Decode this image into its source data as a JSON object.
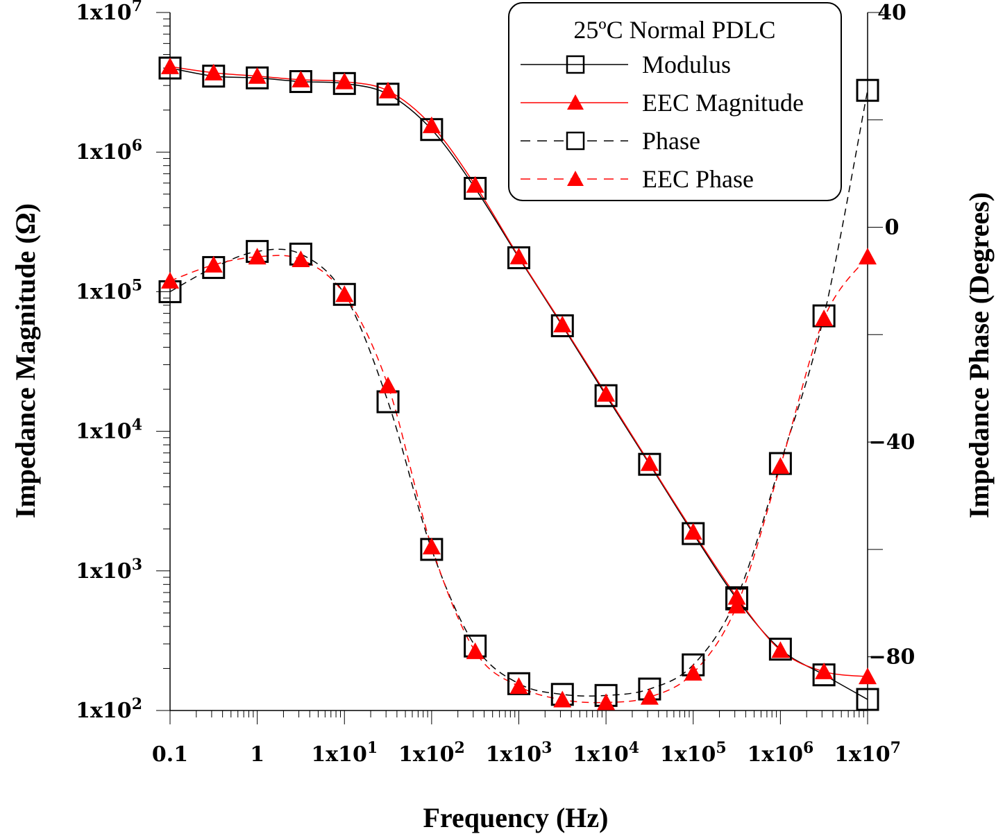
{
  "chart_data": {
    "type": "line",
    "title": "",
    "xlabel": "Frequency (Hz)",
    "ylabel_left": "Impedance Magnitude (Ω)",
    "ylabel_right": "Impedance Phase (Degrees)",
    "x_scale": "log",
    "xlim": [
      0.1,
      10000000
    ],
    "ylim_left": [
      100,
      10000000
    ],
    "ylim_right": [
      -90,
      40
    ],
    "x_ticks": [
      {
        "value": 0.1,
        "label": "0.1"
      },
      {
        "value": 1,
        "label": "1"
      },
      {
        "value": 10,
        "label": "1x10",
        "exp": "1"
      },
      {
        "value": 100,
        "label": "1x10",
        "exp": "2"
      },
      {
        "value": 1000,
        "label": "1x10",
        "exp": "3"
      },
      {
        "value": 10000,
        "label": "1x10",
        "exp": "4"
      },
      {
        "value": 100000,
        "label": "1x10",
        "exp": "5"
      },
      {
        "value": 1000000,
        "label": "1x10",
        "exp": "6"
      },
      {
        "value": 10000000,
        "label": "1x10",
        "exp": "7"
      }
    ],
    "y_left_ticks": [
      {
        "value": 100,
        "label": "1x10",
        "exp": "2"
      },
      {
        "value": 1000,
        "label": "1x10",
        "exp": "3"
      },
      {
        "value": 10000,
        "label": "1x10",
        "exp": "4"
      },
      {
        "value": 100000,
        "label": "1x10",
        "exp": "5"
      },
      {
        "value": 1000000,
        "label": "1x10",
        "exp": "6"
      },
      {
        "value": 10000000,
        "label": "1x10",
        "exp": "7"
      }
    ],
    "y_right_ticks": [
      {
        "value": 40,
        "label": "40"
      },
      {
        "value": 0,
        "label": "0"
      },
      {
        "value": -40,
        "label": "−40"
      },
      {
        "value": -80,
        "label": "−80"
      }
    ],
    "legend": {
      "title": "25ºC Normal PDLC",
      "position": "top-right",
      "entries": [
        "Modulus",
        "EEC Magnitude",
        "Phase",
        "EEC Phase"
      ]
    },
    "x": [
      0.1,
      0.316,
      1,
      3.16,
      10,
      31.6,
      100,
      316,
      1000,
      3160,
      10000,
      31600,
      100000,
      316000,
      1000000,
      3160000,
      10000000
    ],
    "series": [
      {
        "name": "Modulus",
        "axis": "left",
        "style": "solid",
        "color": "#000000",
        "marker": "square",
        "values": [
          4000000,
          3500000,
          3400000,
          3200000,
          3100000,
          2600000,
          1450000,
          550000,
          175000,
          57000,
          18000,
          5800,
          1850,
          630,
          275,
          180,
          120
        ]
      },
      {
        "name": "EEC Magnitude",
        "axis": "left",
        "style": "solid",
        "color": "#ff0000",
        "marker": "triangle",
        "values": [
          4100000,
          3700000,
          3500000,
          3300000,
          3200000,
          2750000,
          1550000,
          580000,
          178000,
          58000,
          18500,
          5900,
          1900,
          650,
          270,
          190,
          175
        ]
      },
      {
        "name": "Phase",
        "axis": "right",
        "style": "dashed",
        "color": "#000000",
        "marker": "square",
        "values": [
          -12,
          -7.5,
          -4.5,
          -5,
          -12.5,
          -32.5,
          -60,
          -78,
          -85,
          -87,
          -87.2,
          -86,
          -81.5,
          -69,
          -44,
          -16.5,
          25.5
        ]
      },
      {
        "name": "EEC Phase",
        "axis": "right",
        "style": "dashed",
        "color": "#ff0000",
        "marker": "triangle",
        "values": [
          -10,
          -7,
          -5.5,
          -6,
          -12.5,
          -29.5,
          -59.5,
          -79,
          -85.5,
          -88,
          -88.5,
          -87.5,
          -83,
          -70.5,
          -44.5,
          -17,
          -5.5
        ]
      }
    ]
  }
}
